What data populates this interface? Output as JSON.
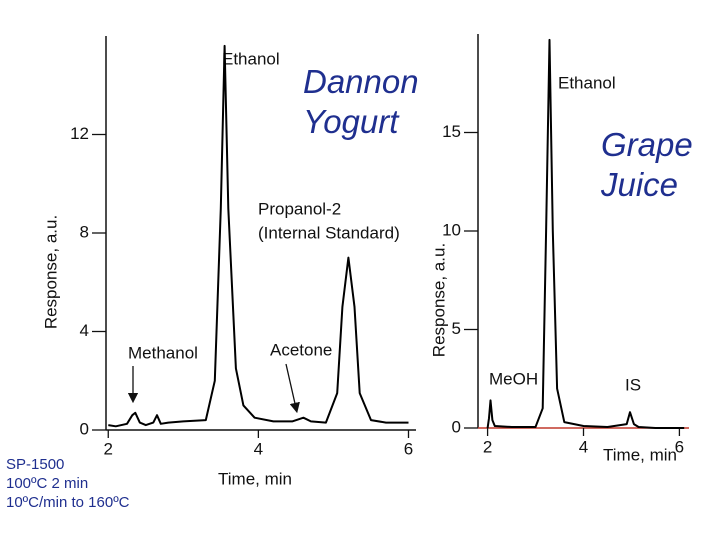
{
  "chart_data": [
    {
      "type": "line",
      "title": "Dannon Yogurt",
      "x_label": "Time, min",
      "y_label": "Response, a.u.",
      "xlim": [
        1.97,
        6.1
      ],
      "xticks": [
        2,
        4,
        6
      ],
      "ylim": [
        0,
        16
      ],
      "yticks": [
        0,
        4,
        8,
        12
      ],
      "annotations": [
        "Ethanol",
        "Propanol-2",
        "(Internal Standard)",
        "Methanol",
        "Acetone"
      ],
      "series": [
        {
          "color": "#000000",
          "x": [
            2.0,
            2.1,
            2.25,
            2.32,
            2.36,
            2.42,
            2.5,
            2.6,
            2.65,
            2.7,
            2.8,
            3.0,
            3.3,
            3.42,
            3.5,
            3.55,
            3.6,
            3.7,
            3.8,
            3.95,
            4.2,
            4.45,
            4.55,
            4.6,
            4.7,
            4.9,
            5.05,
            5.12,
            5.2,
            5.28,
            5.35,
            5.5,
            5.7,
            6.0
          ],
          "values": [
            0.2,
            0.15,
            0.25,
            0.6,
            0.7,
            0.3,
            0.2,
            0.3,
            0.6,
            0.25,
            0.3,
            0.35,
            0.4,
            2,
            9,
            15.6,
            9,
            2.5,
            1,
            0.5,
            0.35,
            0.35,
            0.45,
            0.5,
            0.35,
            0.3,
            1.5,
            5,
            7,
            5,
            1.5,
            0.4,
            0.3,
            0.3
          ]
        }
      ]
    },
    {
      "type": "line",
      "title": "Grape Juice",
      "x_label": "Time, min",
      "y_label": "Response, a.u.",
      "xlim": [
        1.8,
        6.2
      ],
      "xticks": [
        2,
        4,
        6
      ],
      "ylim": [
        0,
        20
      ],
      "yticks": [
        0,
        5,
        10,
        15
      ],
      "annotations": [
        "Ethanol",
        "MeOH",
        "IS"
      ],
      "series": [
        {
          "color": "#000000",
          "x": [
            2.0,
            2.03,
            2.06,
            2.1,
            2.15,
            2.5,
            3.0,
            3.15,
            3.22,
            3.29,
            3.36,
            3.45,
            3.6,
            4.0,
            4.5,
            4.9,
            4.97,
            5.05,
            5.15,
            5.5,
            6.1
          ],
          "values": [
            0,
            0.5,
            1.4,
            0.4,
            0.1,
            0.05,
            0.05,
            1,
            10,
            19.7,
            10,
            2,
            0.3,
            0.1,
            0.05,
            0.2,
            0.8,
            0.2,
            0.05,
            0,
            0
          ]
        }
      ]
    }
  ],
  "notes": [
    "SP-1500",
    "100ºC 2 min",
    "10ºC/min to 160ºC"
  ]
}
